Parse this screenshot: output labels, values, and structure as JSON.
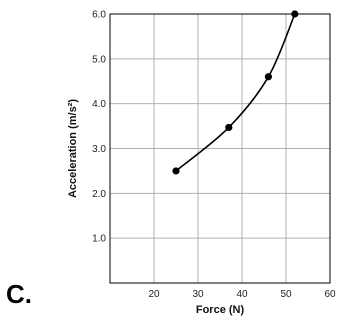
{
  "panel_label": "C.",
  "chart_data": {
    "type": "line",
    "xlabel": "Force (N)",
    "ylabel": "Acceleration (m/s²)",
    "xlim": [
      10,
      60
    ],
    "ylim": [
      0,
      6.0
    ],
    "x_ticks": [
      20,
      30,
      40,
      50,
      60
    ],
    "y_ticks": [
      1.0,
      2.0,
      3.0,
      4.0,
      5.0,
      6.0
    ],
    "grid": true,
    "series": [
      {
        "x": [
          25,
          37,
          46,
          52
        ],
        "y": [
          2.5,
          3.47,
          4.6,
          6.0
        ]
      }
    ],
    "colors": {
      "line": "#000000",
      "grid": "#b0b0b0",
      "axis": "#000000"
    }
  }
}
